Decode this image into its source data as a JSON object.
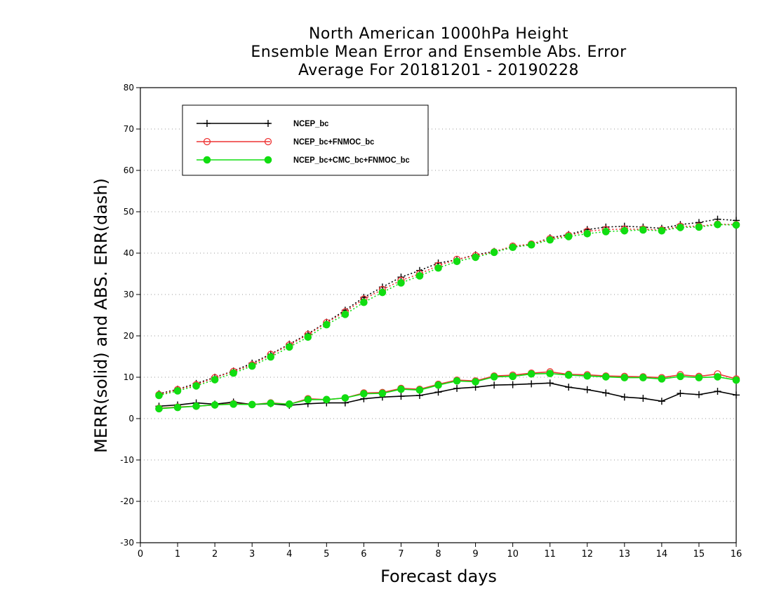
{
  "chart_data": {
    "type": "line",
    "title_lines": [
      "North American 1000hPa Height",
      "Ensemble Mean Error and Ensemble Abs. Error",
      "Average For 20181201 - 20190228"
    ],
    "xlabel": "Forecast days",
    "ylabel": "MERR(solid) and ABS. ERR(dash)",
    "xlim": [
      0,
      16
    ],
    "ylim": [
      -30,
      80
    ],
    "xticks": [
      "0",
      "1",
      "2",
      "3",
      "4",
      "5",
      "6",
      "7",
      "8",
      "9",
      "10",
      "11",
      "12",
      "13",
      "14",
      "15",
      "16"
    ],
    "yticks": [
      "-30",
      "-20",
      "-10",
      "0",
      "10",
      "20",
      "30",
      "40",
      "50",
      "60",
      "70",
      "80"
    ],
    "grid": "horizontal dotted",
    "legend_position": "top-left",
    "x": [
      0.5,
      1,
      1.5,
      2,
      2.5,
      3,
      3.5,
      4,
      4.5,
      5,
      5.5,
      6,
      6.5,
      7,
      7.5,
      8,
      8.5,
      9,
      9.5,
      10,
      10.5,
      11,
      11.5,
      12,
      12.5,
      13,
      13.5,
      14,
      14.5,
      15,
      15.5,
      16
    ],
    "series": [
      {
        "name": "NCEP_bc",
        "color": "#000000",
        "marker": "plus",
        "merr": [
          3.0,
          3.3,
          3.8,
          3.5,
          4.0,
          3.4,
          3.6,
          3.2,
          3.6,
          3.8,
          3.8,
          4.8,
          5.2,
          5.4,
          5.6,
          6.4,
          7.3,
          7.6,
          8.1,
          8.2,
          8.4,
          8.6,
          7.6,
          7.0,
          6.2,
          5.2,
          4.9,
          4.2,
          6.1,
          5.8,
          6.6,
          5.7
        ],
        "abs_err": [
          6.0,
          7.1,
          8.5,
          10.0,
          11.5,
          13.4,
          15.6,
          18.0,
          20.5,
          23.3,
          26.2,
          29.3,
          31.8,
          34.2,
          35.8,
          37.6,
          38.4,
          39.6,
          40.4,
          41.5,
          42.1,
          43.7,
          44.5,
          45.7,
          46.3,
          46.5,
          46.3,
          46.0,
          46.9,
          47.4,
          48.2,
          47.9
        ]
      },
      {
        "name": "NCEP_bc+FNMOC_bc",
        "color": "#ee3333",
        "marker": "open-circle",
        "merr": [
          2.5,
          2.8,
          3.0,
          3.3,
          3.6,
          3.4,
          3.8,
          3.5,
          4.8,
          4.6,
          5.0,
          6.2,
          6.3,
          7.3,
          7.1,
          8.3,
          9.3,
          9.1,
          10.3,
          10.5,
          11.0,
          11.3,
          10.7,
          10.6,
          10.3,
          10.2,
          10.1,
          9.9,
          10.6,
          10.2,
          10.8,
          9.6
        ],
        "abs_err": [
          5.8,
          7.0,
          8.2,
          9.9,
          11.4,
          13.0,
          15.5,
          17.8,
          20.3,
          23.2,
          25.8,
          28.9,
          31.2,
          33.4,
          35.0,
          37.0,
          38.5,
          39.4,
          40.3,
          41.7,
          42.2,
          43.5,
          44.3,
          45.3,
          45.7,
          45.8,
          45.8,
          45.6,
          46.5,
          46.5,
          47.0,
          46.9
        ]
      },
      {
        "name": "NCEP_bc+CMC_bc+FNMOC_bc",
        "color": "#11dd11",
        "marker": "filled-circle",
        "merr": [
          2.4,
          2.7,
          3.0,
          3.3,
          3.5,
          3.4,
          3.7,
          3.5,
          4.6,
          4.6,
          5.0,
          6.0,
          6.1,
          7.1,
          6.9,
          8.1,
          9.1,
          8.9,
          10.1,
          10.2,
          10.8,
          10.9,
          10.5,
          10.3,
          10.1,
          9.9,
          9.9,
          9.6,
          10.2,
          9.9,
          10.1,
          9.3
        ],
        "abs_err": [
          5.6,
          6.7,
          7.9,
          9.4,
          11.0,
          12.7,
          14.9,
          17.3,
          19.7,
          22.7,
          25.2,
          28.1,
          30.5,
          32.8,
          34.5,
          36.4,
          38.0,
          39.0,
          40.2,
          41.4,
          42.0,
          43.2,
          44.0,
          44.7,
          45.2,
          45.4,
          45.6,
          45.4,
          46.2,
          46.3,
          46.9,
          46.8
        ]
      }
    ]
  }
}
